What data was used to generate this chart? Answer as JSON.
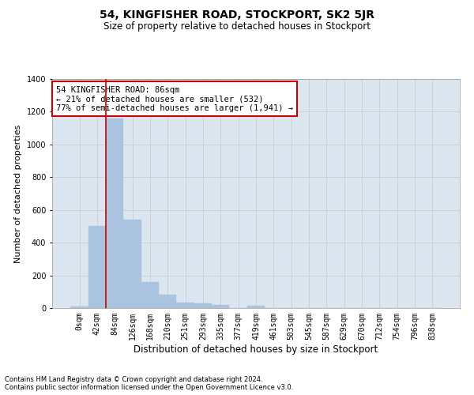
{
  "title": "54, KINGFISHER ROAD, STOCKPORT, SK2 5JR",
  "subtitle": "Size of property relative to detached houses in Stockport",
  "xlabel": "Distribution of detached houses by size in Stockport",
  "ylabel": "Number of detached properties",
  "footer_line1": "Contains HM Land Registry data © Crown copyright and database right 2024.",
  "footer_line2": "Contains public sector information licensed under the Open Government Licence v3.0.",
  "bar_labels": [
    "0sqm",
    "42sqm",
    "84sqm",
    "126sqm",
    "168sqm",
    "210sqm",
    "251sqm",
    "293sqm",
    "335sqm",
    "377sqm",
    "419sqm",
    "461sqm",
    "503sqm",
    "545sqm",
    "587sqm",
    "629sqm",
    "670sqm",
    "712sqm",
    "754sqm",
    "796sqm",
    "838sqm"
  ],
  "bar_values": [
    10,
    500,
    1160,
    540,
    160,
    82,
    35,
    28,
    18,
    0,
    14,
    0,
    0,
    0,
    0,
    0,
    0,
    0,
    0,
    0,
    0
  ],
  "bar_color": "#aac4e0",
  "bar_edge_color": "#aac4e0",
  "grid_color": "#cccccc",
  "bg_color": "#dce6f0",
  "vline_color": "#cc0000",
  "vline_x_index": 1.5,
  "annotation_text": "54 KINGFISHER ROAD: 86sqm\n← 21% of detached houses are smaller (532)\n77% of semi-detached houses are larger (1,941) →",
  "annotation_box_color": "#cc0000",
  "ylim": [
    0,
    1400
  ],
  "yticks": [
    0,
    200,
    400,
    600,
    800,
    1000,
    1200,
    1400
  ],
  "title_fontsize": 10,
  "subtitle_fontsize": 8.5,
  "ylabel_fontsize": 8,
  "xlabel_fontsize": 8.5,
  "tick_fontsize": 7,
  "footer_fontsize": 6,
  "annot_fontsize": 7.5
}
